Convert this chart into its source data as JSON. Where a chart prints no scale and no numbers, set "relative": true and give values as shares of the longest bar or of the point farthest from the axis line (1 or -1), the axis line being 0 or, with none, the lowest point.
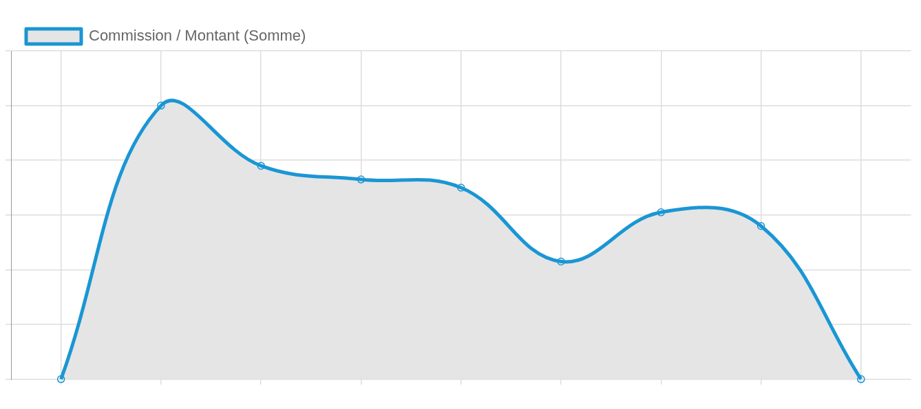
{
  "chart_data": {
    "type": "area",
    "relative": true,
    "categories": [
      null,
      null,
      null,
      null,
      null,
      null,
      null,
      null,
      null
    ],
    "series": [
      {
        "name": "Commission / Montant (Somme)",
        "color": "#1a96d4",
        "values": [
          0,
          1,
          0.78,
          0.73,
          0.7,
          0.43,
          0.61,
          0.56,
          0
        ]
      }
    ],
    "grid": true,
    "legend": "top",
    "marker": "circle",
    "line_style": "solid"
  }
}
